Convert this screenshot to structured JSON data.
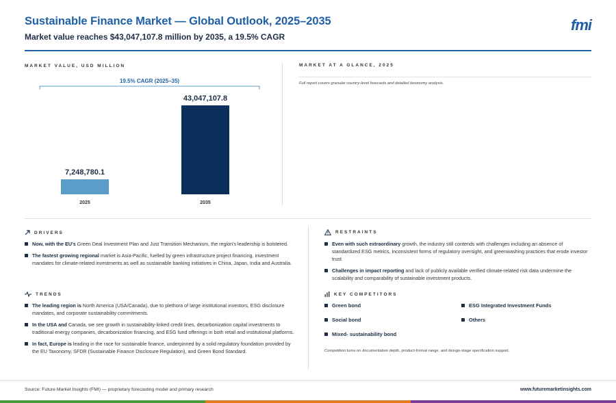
{
  "header": {
    "title": "Sustainable Finance Market — Global Outlook, 2025–2035",
    "subtitle": "Market value reaches $43,047,107.8 million by 2035, a 19.5% CAGR",
    "logo": "fmi"
  },
  "chart_data": {
    "type": "bar",
    "title": "MARKET VALUE, USD MILLION",
    "categories": [
      "2025",
      "2035"
    ],
    "values": [
      7248780.1,
      43047107.8
    ],
    "value_labels": [
      "7,248,780.1",
      "43,047,107.8"
    ],
    "bar_colors": [
      "#5b9dc9",
      "#0b2f5b"
    ],
    "cagr_label": "19.5% CAGR (2025–35)",
    "xlabel": "",
    "ylabel": "",
    "ylim": [
      0,
      43047107.8
    ],
    "grid": false
  },
  "glance": {
    "label": "MARKET AT A GLANCE, 2025",
    "note": "Full report covers granular country-level forecasts and detailed taxonomy analysis."
  },
  "drivers": {
    "label": "DRIVERS",
    "items": [
      {
        "bold": "Now, with the EU's",
        "text": " Green Deal Investment Plan and Just Transition Mechanism, the region's leadership is bolstered."
      },
      {
        "bold": "The fastest growing regional",
        "text": " market is Asia-Pacific, fuelled by green infrastructure project financing, investment mandates for climate-related investments as well as sustainable banking initiatives in China, Japan, India and Australia."
      }
    ]
  },
  "trends": {
    "label": "TRENDS",
    "items": [
      {
        "bold": "The leading region is",
        "text": " North America (USA/Canada), due to plethora of large institutional investors, ESG disclosure mandates, and corporate sustainability commitments."
      },
      {
        "bold": "In the USA and",
        "text": " Canada, we see growth in sustainability-linked credit lines, decarbonization capital investments to traditional energy companies, decarbonization financing, and ESG fund offerings in both retail and institutional platforms."
      },
      {
        "bold": "In fact, Europe is",
        "text": " leading in the race for sustainable finance, underpinned by a solid regulatory foundation provided by the EU Taxonomy, SFDR (Sustainable Finance Disclosure Regulation), and Green Bond Standard."
      }
    ]
  },
  "restraints": {
    "label": "RESTRAINTS",
    "items": [
      {
        "bold": "Even with such extraordinary",
        "text": " growth, the industry still contends with challenges including an absence of standardized ESG metrics, inconsistent forms of regulatory oversight, and greenwashing practices that erode investor trust."
      },
      {
        "bold": "Challenges in impact reporting",
        "text": " and lack of publicly available verified climate-related risk data undermine the scalability and comparability of sustainable investment products."
      }
    ]
  },
  "competitors": {
    "label": "KEY COMPETITORS",
    "items": [
      "Green bond",
      "ESG Integrated Investment Funds",
      "Social bond",
      "Others",
      "Mixed- sustainability bond"
    ],
    "note": "Competition turns on documentation depth, product-format range, and design-stage specification support."
  },
  "footer": {
    "source": "Source: Future Market Insights (FMI) — proprietary forecasting model and primary research",
    "url": "www.futuremarketinsights.com",
    "bar_colors": [
      "#4a9e3f",
      "#e07b24",
      "#7b3f98"
    ]
  }
}
